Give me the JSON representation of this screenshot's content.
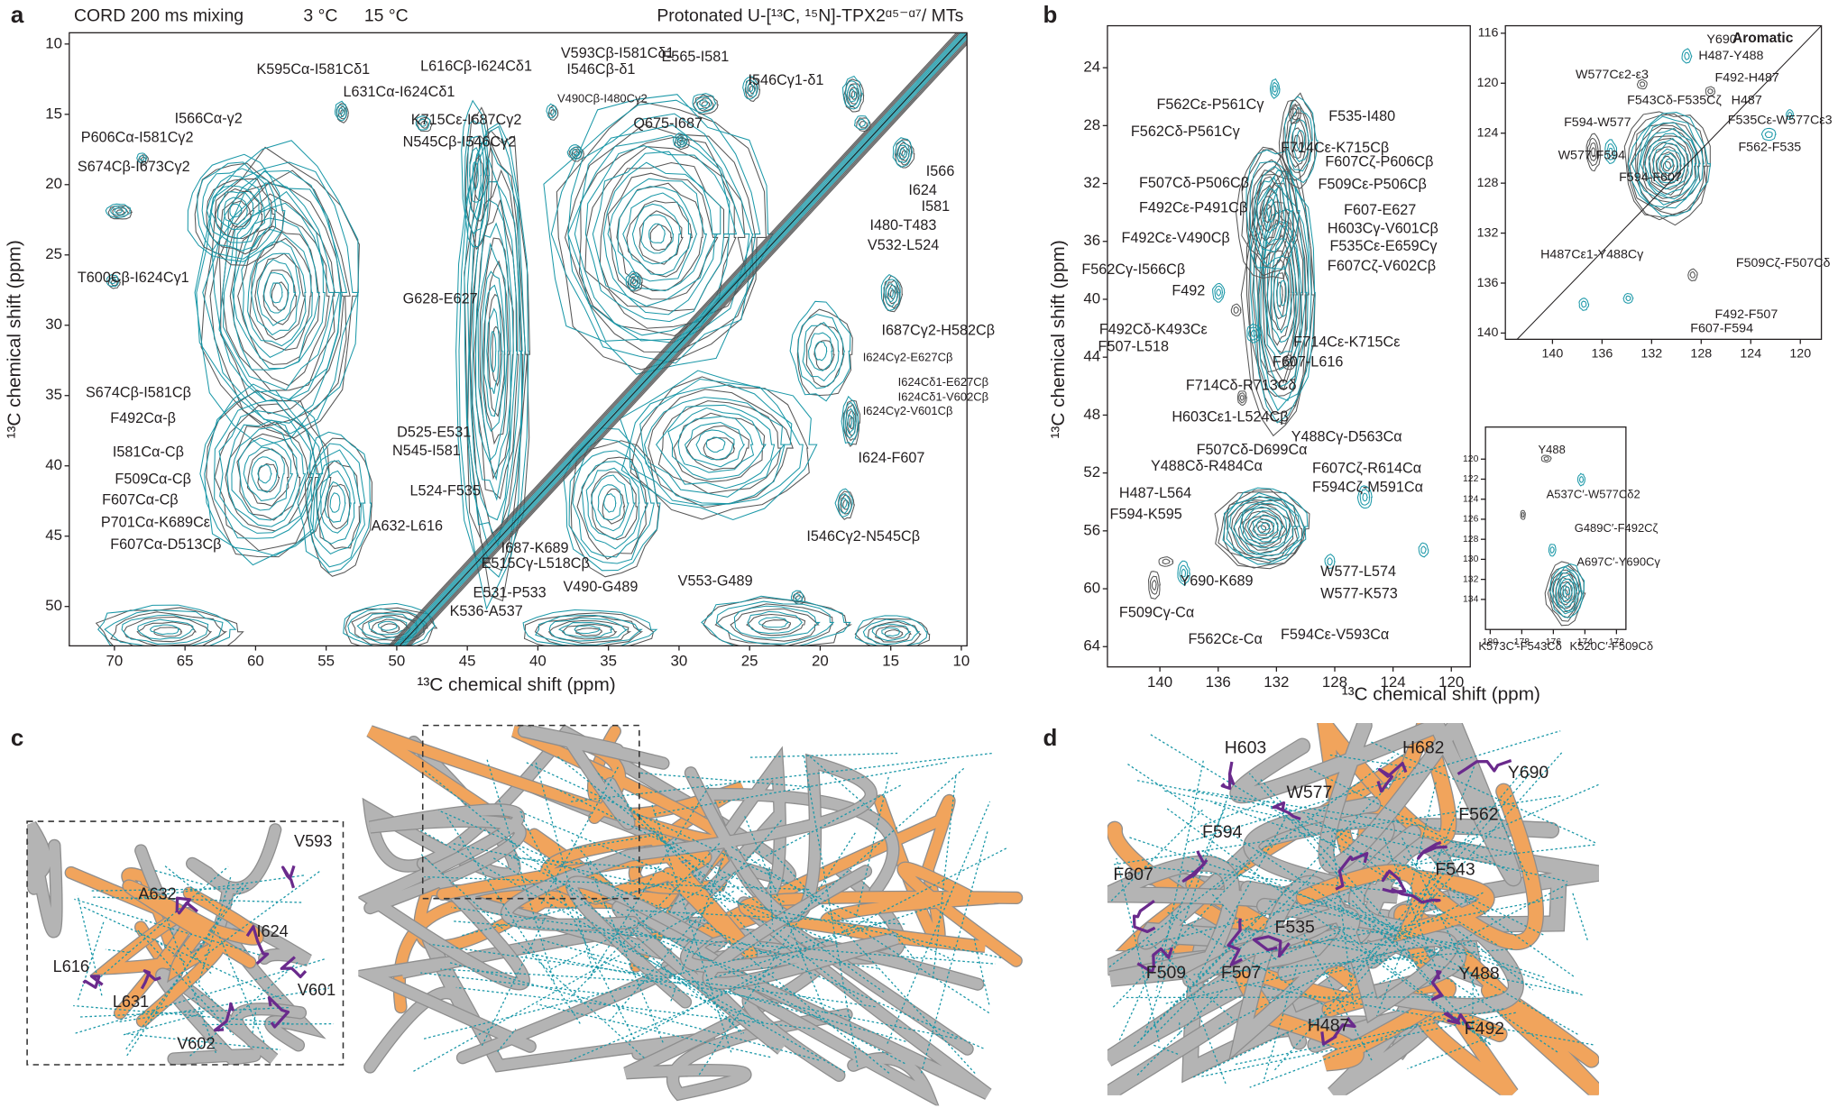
{
  "panel_labels": [
    "a",
    "b",
    "c",
    "d"
  ],
  "colors": {
    "teal": "#1b98a8",
    "black": "#231f20",
    "purple": "#6a2a8c",
    "gray": "#b4b4b4",
    "orange": "#f1a45c"
  },
  "spectrum_a": {
    "method": "CORD 200 ms mixing",
    "temp_1": "3 °C",
    "temp_2": "15 °C",
    "sample": "Protonated U-[¹³C, ¹⁵N]-TPX2ᵅ⁵⁻ᵅ⁷/ MTs",
    "x_label": "¹³C chemical shift (ppm)",
    "y_label": "¹³C chemical shift (ppm)",
    "xlim": [
      73.2,
      9.6
    ],
    "ylim": [
      9.2,
      52.8
    ],
    "xticks": [
      70,
      65,
      60,
      55,
      50,
      45,
      40,
      35,
      30,
      25,
      20,
      15,
      10
    ],
    "yticks": [
      10,
      15,
      20,
      25,
      30,
      35,
      40,
      45,
      50
    ],
    "labels_teal": [
      "K595Cα-I581Cδ1",
      "L616Cβ-I624Cδ1",
      "V593Cβ-I581Cδ1",
      "I546Cβ-δ1",
      "V490Cβ-I480Cγ2",
      "E565-I581",
      "I546Cγ1-δ1",
      "L631Cα-I624Cδ1",
      "I566Cα-γ2",
      "K715Cε-I687Cγ2",
      "Q675-I687",
      "P606Cα-I581Cγ2",
      "N545Cβ-I546Cγ2",
      "S674Cβ-I673Cγ2",
      "I581",
      "I480-T483",
      "V532-L524",
      "T600Cβ-I624Cγ1",
      "G628-E627",
      "I687Cγ2-H582Cβ",
      "I624Cγ2-E627Cβ",
      "I624Cδ1-E627Cβ",
      "I624Cδ1-V602Cβ",
      "I624Cγ2-V601Cβ",
      "S674Cβ-I581Cβ",
      "F492Cα-β",
      "D525-E531",
      "N545-I581",
      "I624-F607",
      "L524-F535",
      "F607Cα-Cβ",
      "A632-L616",
      "P701Cα-K689Cε",
      "F607Cα-D513Cβ",
      "I687-K689",
      "I546Cγ2-N545Cβ",
      "E515Cγ-L518Cβ",
      "V490-G489",
      "V553-G489",
      "E531-P533",
      "K536-A537"
    ],
    "labels_black": [
      "I566",
      "I624",
      "I581Cα-Cβ",
      "F509Cα-Cβ"
    ]
  },
  "spectrum_b": {
    "x_label": "¹³C chemical shift (ppm)",
    "y_label": "¹³C chemical shift (ppm)",
    "xlim": [
      143.6,
      118.7
    ],
    "ylim": [
      21.1,
      65.4
    ],
    "xticks": [
      140,
      136,
      132,
      128,
      124,
      120
    ],
    "yticks": [
      24,
      28,
      32,
      36,
      40,
      44,
      48,
      52,
      56,
      60,
      64
    ],
    "labels_teal": [
      "F535-I480",
      "F607Cζ-P606Cβ",
      "F607-E627",
      "F492Cε-V490Cβ",
      "F535Cε-E659Cγ",
      "F607Cζ-V602Cβ",
      "F562Cγ-I566Cβ",
      "F492",
      "F607-L616",
      "F507Cδ-D699Cα",
      "Y488Cγ-D563Cα",
      "H487-L564",
      "F594-K595",
      "Y690-K689",
      "W577-L574",
      "W577-K573",
      "F562Cε-Cα",
      "F594Cε-V593Cα"
    ],
    "labels_black": [
      "F562Cε-P561Cγ",
      "F562Cδ-P561Cγ",
      "F714Cε-K715Cβ",
      "F507Cδ-P506Cβ",
      "F509Cε-P506Cβ",
      "F492Cε-P491Cβ",
      "H603Cγ-V601Cβ",
      "F492Cδ-K493Cε",
      "F714Cε-K715Cε",
      "F507-L518",
      "F714Cδ-R713Cδ",
      "H603Cε1-L524Cβ",
      "Y488Cδ-R484Cα",
      "F607Cζ-R614Cα",
      "F594Cζ-M591Cα",
      "F509Cγ-Cα"
    ]
  },
  "aromatic": {
    "title": "Aromatic",
    "xlim": [
      143.8,
      118.3
    ],
    "ylim": [
      115.4,
      140.5
    ],
    "xticks": [
      140,
      136,
      132,
      128,
      124,
      120
    ],
    "yticks": [
      116,
      120,
      124,
      128,
      132,
      136,
      140
    ],
    "labels_teal": [
      "Y690",
      "H487-Y488",
      "W577Cε2-ε3",
      "F492-H487",
      "F543Cδ-F535Cζ",
      "H487",
      "F535Cε-W577Cε3",
      "F594-W577",
      "W577-F594",
      "F562-F535",
      "F594-F607",
      "F509Cζ-F507Cδ",
      "F492-F507",
      "F607-F594"
    ],
    "labels_black": [
      "H487Cε1-Y488Cγ"
    ]
  },
  "carbonyl": {
    "xlim": [
      180.3,
      171.4
    ],
    "ylim": [
      116.8,
      137.0
    ],
    "xticks": [
      180,
      178,
      176,
      174,
      172
    ],
    "yticks": [
      120,
      122,
      124,
      126,
      128,
      130,
      132,
      134
    ],
    "labels_teal": [
      "Y488",
      "A537C′-W577Cδ2",
      "G489C′-F492Cζ",
      "A697C′-Y690Cγ",
      "K573C′-F543Cδ",
      "K520C′-F509Cδ"
    ],
    "labels_black": []
  },
  "structure_c": {
    "labels": [
      "V593",
      "A632",
      "I624",
      "L616",
      "V601",
      "L631",
      "V602"
    ]
  },
  "structure_d": {
    "labels": [
      "H603",
      "H682",
      "Y690",
      "W577",
      "F562",
      "F594",
      "F607",
      "F543",
      "F535",
      "F509",
      "F507",
      "Y488",
      "H487",
      "F492"
    ]
  }
}
